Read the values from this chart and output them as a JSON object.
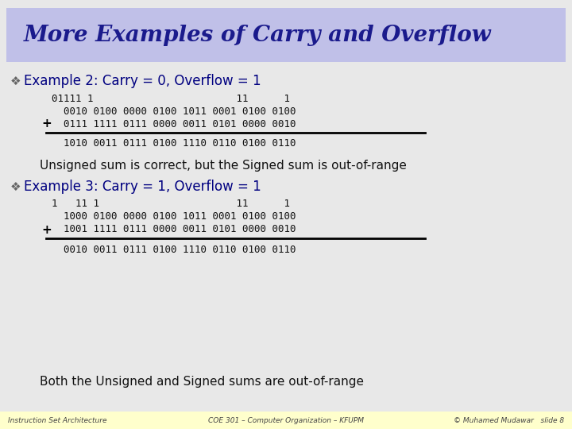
{
  "title": "More Examples of Carry and Overflow",
  "title_color": "#1a1a8c",
  "title_bg": "#c0c0e8",
  "bg_color": "#e8e8e8",
  "body_bg": "#f5f5f5",
  "footer_bg": "#ffffcc",
  "footer_texts": [
    "Instruction Set Architecture",
    "COE 301 – Computer Organization – KFUPM",
    "© Muhamed Mudawar   slide 8"
  ],
  "example2_label": "Example 2: Carry = 0, Overflow = 1",
  "example3_label": "Example 3: Carry = 1, Overflow = 1",
  "carry_row2": "01111 1                        11      1",
  "op_row2a": "  0010 0100 0000 0100 1011 0001 0100 0100",
  "op_row2b": "  0111 1111 0111 0000 0011 0101 0000 0010",
  "result2": "  1010 0011 0111 0100 1110 0110 0100 0110",
  "carry_row3": "1   11 1                       11      1",
  "op_row3a": "  1000 0100 0000 0100 1011 0001 0100 0100",
  "op_row3b": "  1001 1111 0111 0000 0011 0101 0000 0010",
  "result3": "  0010 0011 0111 0100 1110 0110 0100 0110",
  "msg2": "Unsigned sum is correct, but the Signed sum is out-of-range",
  "msg3": "Both the Unsigned and Signed sums are out-of-range",
  "mono_color": "#111111",
  "label_color": "#000080",
  "msg_color": "#111111",
  "plus_color": "#000000",
  "bullet_color": "#666666",
  "line_color": "#000000",
  "title_fontsize": 20,
  "label_fontsize": 12,
  "mono_fontsize": 9,
  "msg_fontsize": 11,
  "footer_fontsize": 6.5
}
